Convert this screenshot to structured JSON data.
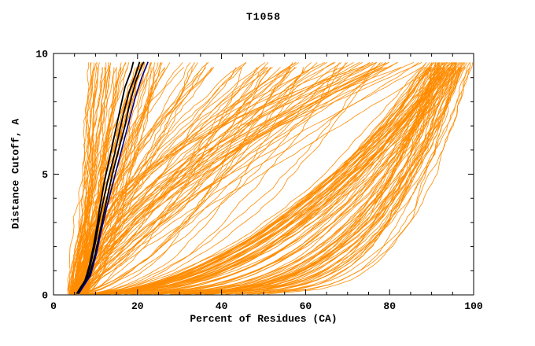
{
  "chart_data": {
    "type": "line",
    "title": "T1058",
    "xlabel": "Percent of Residues (CA)",
    "ylabel": "Distance Cutoff, A",
    "xlim": [
      0,
      100
    ],
    "ylim": [
      0,
      10
    ],
    "xticks": [
      0,
      20,
      40,
      60,
      80,
      100
    ],
    "yticks": [
      0,
      5,
      10
    ],
    "x_minor_step": 5,
    "y_minor_step": 1,
    "grid": false,
    "legend": "none",
    "axis_color": "#000000",
    "background_color": "#ffffff",
    "model_line_color": "#ff8c00",
    "series_groups": [
      {
        "name": "left-cluster-models",
        "color": "#ff8c00",
        "count": 55,
        "p0": [
          3.5,
          8.0
        ],
        "pmax": [
          9,
          28
        ],
        "shape": [
          0.5,
          1.6
        ],
        "wiggle": 0.9
      },
      {
        "name": "mid-fan-models",
        "color": "#ff8c00",
        "count": 55,
        "p0": [
          3.5,
          8.0
        ],
        "pmax": [
          32,
          88
        ],
        "shape": [
          0.45,
          1.8
        ],
        "wiggle": 1.2
      },
      {
        "name": "late-riser-models",
        "color": "#ff8c00",
        "count": 25,
        "p0": [
          3.5,
          8.0
        ],
        "pmax": [
          60,
          97
        ],
        "shape": [
          1.0,
          2.4
        ],
        "wiggle": 1.2
      },
      {
        "name": "right-cluster-models",
        "color": "#ff8c00",
        "count": 95,
        "p0": [
          4.0,
          9.0
        ],
        "pmax": [
          90,
          100
        ],
        "shape": [
          0.12,
          0.55
        ],
        "wiggle": 1.0
      }
    ],
    "highlight_series": [
      {
        "name": "model-black-1",
        "color": "#000000",
        "width": 1.8,
        "points": [
          [
            5.5,
            0.05
          ],
          [
            7.5,
            0.6
          ],
          [
            8.5,
            1.2
          ],
          [
            9.5,
            2.0
          ],
          [
            10.5,
            3.0
          ],
          [
            11,
            3.6
          ],
          [
            12,
            4.6
          ],
          [
            13,
            5.4
          ],
          [
            14,
            6.2
          ],
          [
            15,
            7.0
          ],
          [
            16,
            7.8
          ],
          [
            17,
            8.6
          ],
          [
            18.5,
            9.3
          ],
          [
            19,
            9.65
          ]
        ]
      },
      {
        "name": "model-black-2",
        "color": "#000000",
        "width": 1.8,
        "points": [
          [
            5.8,
            0.05
          ],
          [
            8,
            0.7
          ],
          [
            9,
            1.4
          ],
          [
            10,
            2.2
          ],
          [
            11,
            3.2
          ],
          [
            12,
            4.0
          ],
          [
            13,
            4.8
          ],
          [
            14.5,
            5.8
          ],
          [
            15.5,
            6.6
          ],
          [
            16.5,
            7.4
          ],
          [
            18,
            8.4
          ],
          [
            19.5,
            9.1
          ],
          [
            20.5,
            9.65
          ]
        ]
      },
      {
        "name": "model-black-3",
        "color": "#000000",
        "width": 1.8,
        "points": [
          [
            6,
            0.05
          ],
          [
            8.5,
            0.8
          ],
          [
            9.8,
            1.6
          ],
          [
            10.8,
            2.4
          ],
          [
            12,
            3.4
          ],
          [
            13,
            4.2
          ],
          [
            14,
            5.0
          ],
          [
            15.5,
            6.0
          ],
          [
            17,
            7.0
          ],
          [
            18,
            7.8
          ],
          [
            19.5,
            8.8
          ],
          [
            21,
            9.5
          ],
          [
            21.5,
            9.65
          ]
        ]
      },
      {
        "name": "model-blue-1",
        "color": "#00008b",
        "width": 1.6,
        "points": [
          [
            6,
            0.05
          ],
          [
            8.8,
            0.8
          ],
          [
            10.2,
            1.7
          ],
          [
            11.3,
            2.6
          ],
          [
            12.5,
            3.5
          ],
          [
            13.8,
            4.4
          ],
          [
            15,
            5.2
          ],
          [
            16.5,
            6.2
          ],
          [
            18,
            7.2
          ],
          [
            19.5,
            8.2
          ],
          [
            21,
            9.0
          ],
          [
            22.5,
            9.65
          ]
        ]
      }
    ]
  }
}
